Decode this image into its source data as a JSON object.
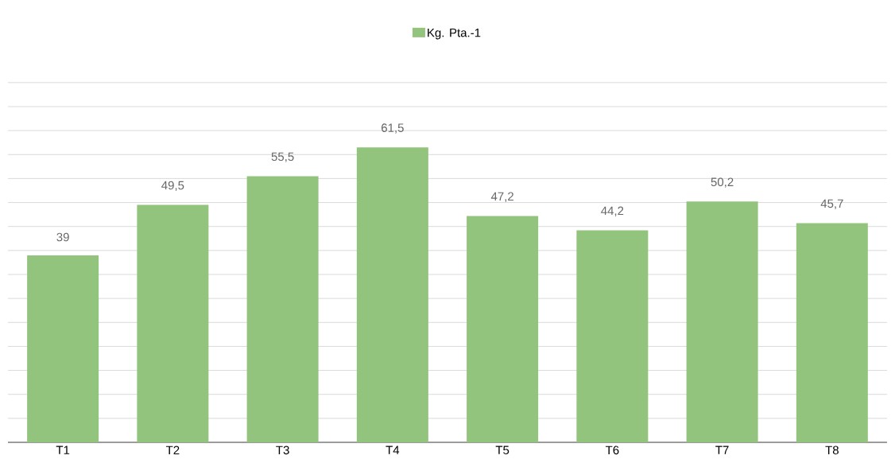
{
  "chart_data": {
    "type": "bar",
    "categories": [
      "T1",
      "T2",
      "T3",
      "T4",
      "T5",
      "T6",
      "T7",
      "T8"
    ],
    "series": [
      {
        "name": "Kg. Pta.-1",
        "color": "#93c47d",
        "values": [
          39,
          49.5,
          55.5,
          61.5,
          47.2,
          44.2,
          50.2,
          45.7
        ],
        "value_labels": [
          "39",
          "49,5",
          "55,5",
          "61,5",
          "47,2",
          "44,2",
          "50,2",
          "45,7"
        ]
      }
    ],
    "grid": "y",
    "legend": "top",
    "tick_labels": "x"
  }
}
